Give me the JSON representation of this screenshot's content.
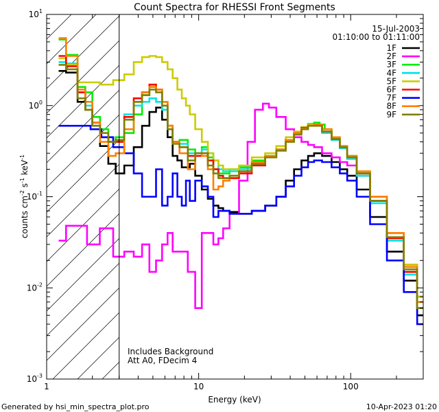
{
  "chart_data": {
    "type": "line",
    "title": "Count Spectra for RHESSI Front Segments",
    "xlabel": "Energy (keV)",
    "ylabel_main": "counts cm",
    "ylabel_exp1": "-2",
    "ylabel_mid": " s",
    "ylabel_exp2": "-1",
    "ylabel_end": " keV",
    "ylabel_exp3": "-1",
    "xscale": "log",
    "yscale": "log",
    "xlim": [
      1,
      300
    ],
    "ylim": [
      0.001,
      10
    ],
    "x_ticks": [
      {
        "value": 1,
        "label": "1"
      },
      {
        "value": 10,
        "label": "10"
      },
      {
        "value": 100,
        "label": "100"
      }
    ],
    "y_ticks": [
      {
        "value": 10,
        "base": "10",
        "exp": "1"
      },
      {
        "value": 1,
        "base": "10",
        "exp": "0"
      },
      {
        "value": 0.1,
        "base": "10",
        "exp": "-1"
      },
      {
        "value": 0.01,
        "base": "10",
        "exp": "-2"
      },
      {
        "value": 0.001,
        "base": "10",
        "exp": "-3"
      }
    ],
    "legend_header": [
      "15-Jul-2003",
      "01:10:00 to 01:11:00"
    ],
    "hatched_region_xmax": 3,
    "annotations": [
      "Includes Background",
      "Att A0, FDecim 4"
    ],
    "series": [
      {
        "name": "1F",
        "color": "#000000",
        "x": [
          1.2,
          1.5,
          1.7,
          1.9,
          2.1,
          2.4,
          2.7,
          3,
          3.5,
          4,
          4.5,
          5,
          5.5,
          6,
          6.5,
          7,
          7.5,
          8,
          8.5,
          9,
          10,
          11,
          12,
          13,
          14,
          15,
          17,
          20,
          25,
          30,
          35,
          40,
          45,
          50,
          55,
          60,
          70,
          80,
          90,
          100,
          120,
          150,
          200,
          250,
          300
        ],
        "y": [
          2.4,
          2.3,
          1.1,
          0.9,
          0.6,
          0.36,
          0.23,
          0.18,
          0.22,
          0.35,
          0.6,
          0.85,
          0.95,
          0.7,
          0.45,
          0.28,
          0.25,
          0.21,
          0.21,
          0.23,
          0.17,
          0.12,
          0.095,
          0.08,
          0.075,
          0.07,
          0.068,
          0.065,
          0.07,
          0.08,
          0.1,
          0.15,
          0.2,
          0.25,
          0.28,
          0.3,
          0.28,
          0.24,
          0.2,
          0.17,
          0.12,
          0.06,
          0.025,
          0.012,
          0.005
        ]
      },
      {
        "name": "2F",
        "color": "#ff00ff",
        "x": [
          1.2,
          1.5,
          1.7,
          2,
          2.5,
          3,
          3.5,
          4,
          4.5,
          5,
          5.5,
          6,
          6.5,
          7,
          8,
          9,
          10,
          11,
          12,
          13,
          14,
          15,
          17,
          20,
          22,
          25,
          28,
          30,
          35,
          40,
          45,
          50,
          55,
          60,
          70,
          80,
          90,
          100,
          120,
          150,
          200,
          250,
          300
        ],
        "y": [
          0.033,
          0.048,
          0.048,
          0.03,
          0.045,
          0.022,
          0.025,
          0.022,
          0.03,
          0.015,
          0.02,
          0.03,
          0.04,
          0.025,
          0.025,
          0.015,
          0.006,
          0.04,
          0.04,
          0.03,
          0.035,
          0.045,
          0.065,
          0.15,
          0.4,
          0.9,
          1.05,
          0.95,
          0.75,
          0.55,
          0.45,
          0.4,
          0.37,
          0.35,
          0.3,
          0.27,
          0.24,
          0.22,
          0.17,
          0.1,
          0.04,
          0.018,
          0.008
        ]
      },
      {
        "name": "3F",
        "color": "#00ee00",
        "x": [
          1.2,
          1.5,
          1.7,
          1.9,
          2.1,
          2.4,
          2.7,
          3,
          3.5,
          4,
          4.5,
          5,
          5.5,
          6,
          6.5,
          7,
          8,
          9,
          10,
          11,
          12,
          13,
          14,
          15,
          17,
          20,
          25,
          30,
          35,
          40,
          45,
          50,
          55,
          60,
          65,
          70,
          80,
          90,
          100,
          120,
          150,
          200,
          250,
          300
        ],
        "y": [
          5.3,
          3.6,
          1.6,
          1.4,
          0.75,
          0.55,
          0.4,
          0.45,
          0.5,
          0.8,
          1.3,
          1.6,
          1.5,
          1.0,
          0.6,
          0.4,
          0.42,
          0.33,
          0.3,
          0.35,
          0.27,
          0.2,
          0.18,
          0.18,
          0.2,
          0.21,
          0.25,
          0.28,
          0.33,
          0.42,
          0.5,
          0.58,
          0.63,
          0.65,
          0.62,
          0.55,
          0.45,
          0.35,
          0.28,
          0.18,
          0.09,
          0.035,
          0.015,
          0.007
        ]
      },
      {
        "name": "4F",
        "color": "#00e5e5",
        "x": [
          1.2,
          1.5,
          1.7,
          1.9,
          2.1,
          2.4,
          2.7,
          3,
          3.5,
          4,
          4.5,
          5,
          5.5,
          6,
          6.5,
          7,
          8,
          9,
          10,
          11,
          12,
          13,
          14,
          15,
          17,
          20,
          25,
          30,
          35,
          40,
          45,
          50,
          55,
          60,
          70,
          80,
          90,
          100,
          120,
          150,
          200,
          250,
          300
        ],
        "y": [
          3.0,
          2.9,
          1.4,
          1.0,
          0.6,
          0.45,
          0.4,
          0.42,
          0.8,
          1.0,
          1.1,
          1.2,
          1.1,
          0.9,
          0.6,
          0.4,
          0.38,
          0.3,
          0.3,
          0.33,
          0.3,
          0.25,
          0.2,
          0.19,
          0.19,
          0.2,
          0.23,
          0.27,
          0.33,
          0.42,
          0.5,
          0.56,
          0.6,
          0.6,
          0.5,
          0.42,
          0.34,
          0.26,
          0.17,
          0.085,
          0.033,
          0.014,
          0.006
        ]
      },
      {
        "name": "5F",
        "color": "#cccc00",
        "x": [
          1.2,
          1.5,
          1.7,
          2,
          2.5,
          3,
          3.5,
          4,
          4.5,
          5,
          5.5,
          6,
          6.5,
          7,
          7.5,
          8,
          8.5,
          9,
          10,
          11,
          12,
          13,
          14,
          15,
          17,
          20,
          25,
          30,
          35,
          40,
          45,
          50,
          55,
          60,
          70,
          80,
          90,
          100,
          120,
          150,
          200,
          250,
          300
        ],
        "y": [
          3.3,
          2.8,
          1.8,
          1.8,
          1.7,
          1.9,
          2.2,
          3.0,
          3.4,
          3.5,
          3.4,
          3.0,
          2.5,
          2.0,
          1.5,
          1.2,
          1.0,
          0.8,
          0.55,
          0.4,
          0.3,
          0.25,
          0.22,
          0.2,
          0.2,
          0.22,
          0.27,
          0.3,
          0.36,
          0.45,
          0.52,
          0.58,
          0.62,
          0.62,
          0.55,
          0.45,
          0.36,
          0.28,
          0.19,
          0.1,
          0.04,
          0.018,
          0.008
        ]
      },
      {
        "name": "6F",
        "color": "#ff0000",
        "x": [
          1.2,
          1.5,
          1.7,
          1.9,
          2.1,
          2.4,
          2.7,
          3,
          3.5,
          4,
          4.5,
          5,
          5.5,
          6,
          6.5,
          7,
          8,
          9,
          10,
          11,
          12,
          13,
          14,
          15,
          17,
          20,
          25,
          30,
          35,
          40,
          45,
          50,
          55,
          60,
          70,
          80,
          90,
          100,
          120,
          150,
          200,
          250,
          300
        ],
        "y": [
          3.5,
          2.7,
          1.4,
          0.9,
          0.65,
          0.45,
          0.4,
          0.4,
          0.75,
          1.2,
          1.4,
          1.7,
          1.5,
          1.1,
          0.6,
          0.4,
          0.35,
          0.28,
          0.28,
          0.3,
          0.25,
          0.2,
          0.17,
          0.16,
          0.16,
          0.18,
          0.22,
          0.27,
          0.33,
          0.42,
          0.5,
          0.57,
          0.6,
          0.6,
          0.52,
          0.43,
          0.35,
          0.27,
          0.18,
          0.09,
          0.035,
          0.015,
          0.006
        ]
      },
      {
        "name": "7F",
        "color": "#0000ff",
        "x": [
          1.2,
          1.5,
          1.8,
          2.1,
          2.5,
          3,
          3.5,
          4,
          4.5,
          5,
          5.5,
          6,
          6.5,
          7,
          7.5,
          8,
          8.5,
          9,
          10,
          11,
          12,
          13,
          14,
          15,
          17,
          20,
          25,
          30,
          35,
          40,
          45,
          50,
          55,
          60,
          70,
          80,
          90,
          100,
          120,
          150,
          200,
          250,
          300
        ],
        "y": [
          0.6,
          0.6,
          0.6,
          0.55,
          0.45,
          0.35,
          0.3,
          0.18,
          0.1,
          0.1,
          0.2,
          0.08,
          0.1,
          0.18,
          0.1,
          0.08,
          0.15,
          0.09,
          0.15,
          0.13,
          0.1,
          0.06,
          0.07,
          0.07,
          0.065,
          0.065,
          0.07,
          0.08,
          0.1,
          0.13,
          0.17,
          0.21,
          0.24,
          0.25,
          0.24,
          0.21,
          0.18,
          0.15,
          0.1,
          0.05,
          0.02,
          0.009,
          0.004
        ]
      },
      {
        "name": "8F",
        "color": "#ff7f00",
        "x": [
          1.2,
          1.5,
          1.7,
          1.9,
          2.1,
          2.4,
          2.7,
          3,
          3.5,
          4,
          4.5,
          5,
          5.5,
          6,
          6.5,
          7,
          8,
          9,
          10,
          11,
          12,
          13,
          14,
          15,
          17,
          20,
          25,
          30,
          35,
          40,
          45,
          50,
          55,
          60,
          70,
          80,
          90,
          100,
          120,
          150,
          200,
          250,
          300
        ],
        "y": [
          5.5,
          3.5,
          1.5,
          1.1,
          0.65,
          0.4,
          0.28,
          0.3,
          0.55,
          1.1,
          1.4,
          1.6,
          1.5,
          1.1,
          0.6,
          0.4,
          0.3,
          0.2,
          0.3,
          0.28,
          0.2,
          0.12,
          0.13,
          0.15,
          0.17,
          0.19,
          0.24,
          0.28,
          0.33,
          0.42,
          0.5,
          0.56,
          0.6,
          0.62,
          0.55,
          0.45,
          0.36,
          0.28,
          0.19,
          0.1,
          0.04,
          0.017,
          0.007
        ]
      },
      {
        "name": "9F",
        "color": "#808000",
        "x": [
          1.2,
          1.5,
          1.7,
          1.9,
          2.1,
          2.4,
          2.7,
          3,
          3.5,
          4,
          4.5,
          5,
          5.5,
          6,
          6.5,
          7,
          8,
          9,
          10,
          11,
          12,
          13,
          14,
          15,
          17,
          20,
          25,
          30,
          35,
          40,
          45,
          50,
          55,
          60,
          70,
          80,
          90,
          100,
          120,
          150,
          200,
          250,
          300
        ],
        "y": [
          2.8,
          2.5,
          1.2,
          0.9,
          0.6,
          0.5,
          0.4,
          0.42,
          0.7,
          1.1,
          1.3,
          1.5,
          1.4,
          1.0,
          0.55,
          0.38,
          0.35,
          0.25,
          0.3,
          0.3,
          0.22,
          0.18,
          0.16,
          0.16,
          0.17,
          0.19,
          0.23,
          0.27,
          0.32,
          0.4,
          0.48,
          0.55,
          0.6,
          0.6,
          0.52,
          0.43,
          0.35,
          0.27,
          0.18,
          0.09,
          0.036,
          0.016,
          0.006
        ]
      }
    ]
  },
  "footer": {
    "left": "Generated by hsi_min_spectra_plot.pro",
    "right": "10-Apr-2023 01:20"
  }
}
